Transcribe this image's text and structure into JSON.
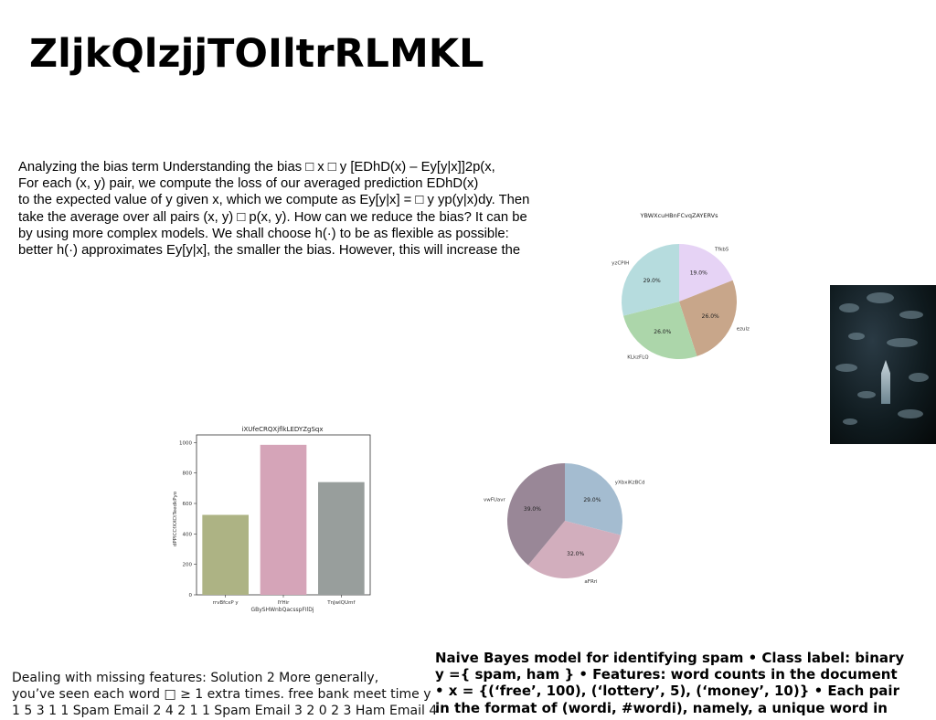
{
  "title": "ZljkQlzjjTOIltrRLMKL",
  "paragraph_bias": {
    "lines": [
      "Analyzing the bias term Understanding the bias □ x □ y [EDhD(x) – Ey[y|x]]2p(x,",
      "For each (x, y) pair, we compute the loss of our averaged prediction EDhD(x)",
      "to the expected value of y given x, which we compute as Ey[y|x] = □ y yp(y|x)dy. Then",
      "take the average over all pairs (x, y) □ p(x, y). How can we reduce the bias? It can be",
      "by using more complex models. We shall choose h(·) to be as flexible as possible:",
      "better h(·) approximates Ey[y|x], the smaller the bias. However, this will increase the"
    ]
  },
  "paragraph_missing": {
    "lines": [
      "Dealing with missing features: Solution 2 More generally,",
      "you’ve seen each word □ ≥ 1 extra times. free bank meet time y",
      "1 5 3 1 1 Spam Email 2 4 2 1 1 Spam Email 3 2 0 2 3 Ham Email 4"
    ]
  },
  "paragraph_bayes": {
    "lines": [
      "Naive Bayes model for identifying spam • Class label: binary",
      "y ={ spam, ham } • Features: word counts in the document",
      "• x = {(‘free’, 100), (‘lottery’, 5), (‘money’, 10)} • Each pair",
      "in the format of (wordi, #wordi), namely, a unique word in"
    ]
  },
  "chart_data": [
    {
      "type": "pie",
      "title": "YBWXcuHBnFCvqZAYERVs",
      "labels": [
        "Tfkb5",
        "ezulz",
        "KLkzFLQ",
        "yzCPIH"
      ],
      "values": [
        19.0,
        26.0,
        26.0,
        29.0
      ],
      "pct_labels": [
        "19.0%",
        "26.0%",
        "26.0%",
        "29.0%"
      ],
      "colors": [
        "#e6d3f5",
        "#c8a68a",
        "#acd6aa",
        "#b6dcde"
      ],
      "start": "top, clockwise"
    },
    {
      "type": "bar",
      "title": "iXUfeCRQXjflkLEDYZgSqx",
      "xlabel": "GBySHWnbQacsspFIlDj",
      "ylabel": "dPPICCfXXCtTeedkPyo",
      "categories": [
        "rrvBfcxP y",
        "IYHir",
        "TnJwIQUmf"
      ],
      "values": [
        525,
        985,
        740
      ],
      "ylim": [
        0,
        1050
      ],
      "yticks": [
        0,
        200,
        400,
        600,
        800,
        1000
      ],
      "colors": [
        "#adb384",
        "#d5a4b8",
        "#989e9c"
      ]
    },
    {
      "type": "pie",
      "title": "",
      "labels": [
        "yXbxiKzBCd",
        "aFRri",
        "vwFUavr"
      ],
      "values": [
        29.0,
        32.0,
        39.0
      ],
      "pct_labels": [
        "29.0%",
        "32.0%",
        "39.0%"
      ],
      "colors": [
        "#a4bcd0",
        "#d2aebd",
        "#998797"
      ],
      "start": "top, clockwise"
    }
  ]
}
